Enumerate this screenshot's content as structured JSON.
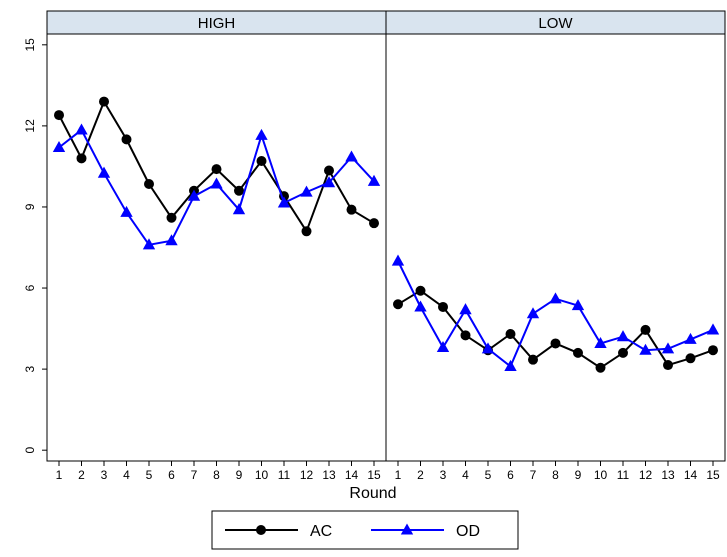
{
  "chart_data": {
    "type": "line",
    "xlabel": "Round",
    "ylabel": "",
    "ylim": [
      -0.4,
      15.4
    ],
    "y_ticks": [
      "0",
      "3",
      "6",
      "9",
      "12",
      "15"
    ],
    "x_ticks": [
      "1",
      "2",
      "3",
      "4",
      "5",
      "6",
      "7",
      "8",
      "9",
      "10",
      "11",
      "12",
      "13",
      "14",
      "15"
    ],
    "grid": false,
    "legend_position": "bottom",
    "colors": {
      "AC": "#000000",
      "OD": "#0000ff",
      "panel_header_bg": "#d9e4ef"
    },
    "panels": [
      {
        "title": "HIGH",
        "series": [
          {
            "name": "AC",
            "marker": "circle",
            "values": [
              12.4,
              10.8,
              12.9,
              11.5,
              9.85,
              8.6,
              9.6,
              10.4,
              9.6,
              10.7,
              9.4,
              8.1,
              10.35,
              8.9,
              8.4
            ]
          },
          {
            "name": "OD",
            "marker": "triangle",
            "values": [
              11.2,
              11.85,
              10.25,
              8.8,
              7.6,
              7.75,
              9.4,
              9.85,
              8.9,
              11.65,
              9.15,
              9.55,
              9.9,
              10.85,
              9.95
            ]
          }
        ]
      },
      {
        "title": "LOW",
        "series": [
          {
            "name": "AC",
            "marker": "circle",
            "values": [
              5.4,
              5.9,
              5.3,
              4.25,
              3.7,
              4.3,
              3.35,
              3.95,
              3.6,
              3.05,
              3.6,
              4.45,
              3.15,
              3.4,
              3.7
            ]
          },
          {
            "name": "OD",
            "marker": "triangle",
            "values": [
              7.0,
              5.3,
              3.8,
              5.2,
              3.75,
              3.1,
              5.05,
              5.6,
              5.35,
              3.95,
              4.2,
              3.7,
              3.75,
              4.1,
              4.45
            ]
          }
        ]
      }
    ],
    "legend": [
      {
        "name": "AC",
        "marker": "circle"
      },
      {
        "name": "OD",
        "marker": "triangle"
      }
    ]
  }
}
